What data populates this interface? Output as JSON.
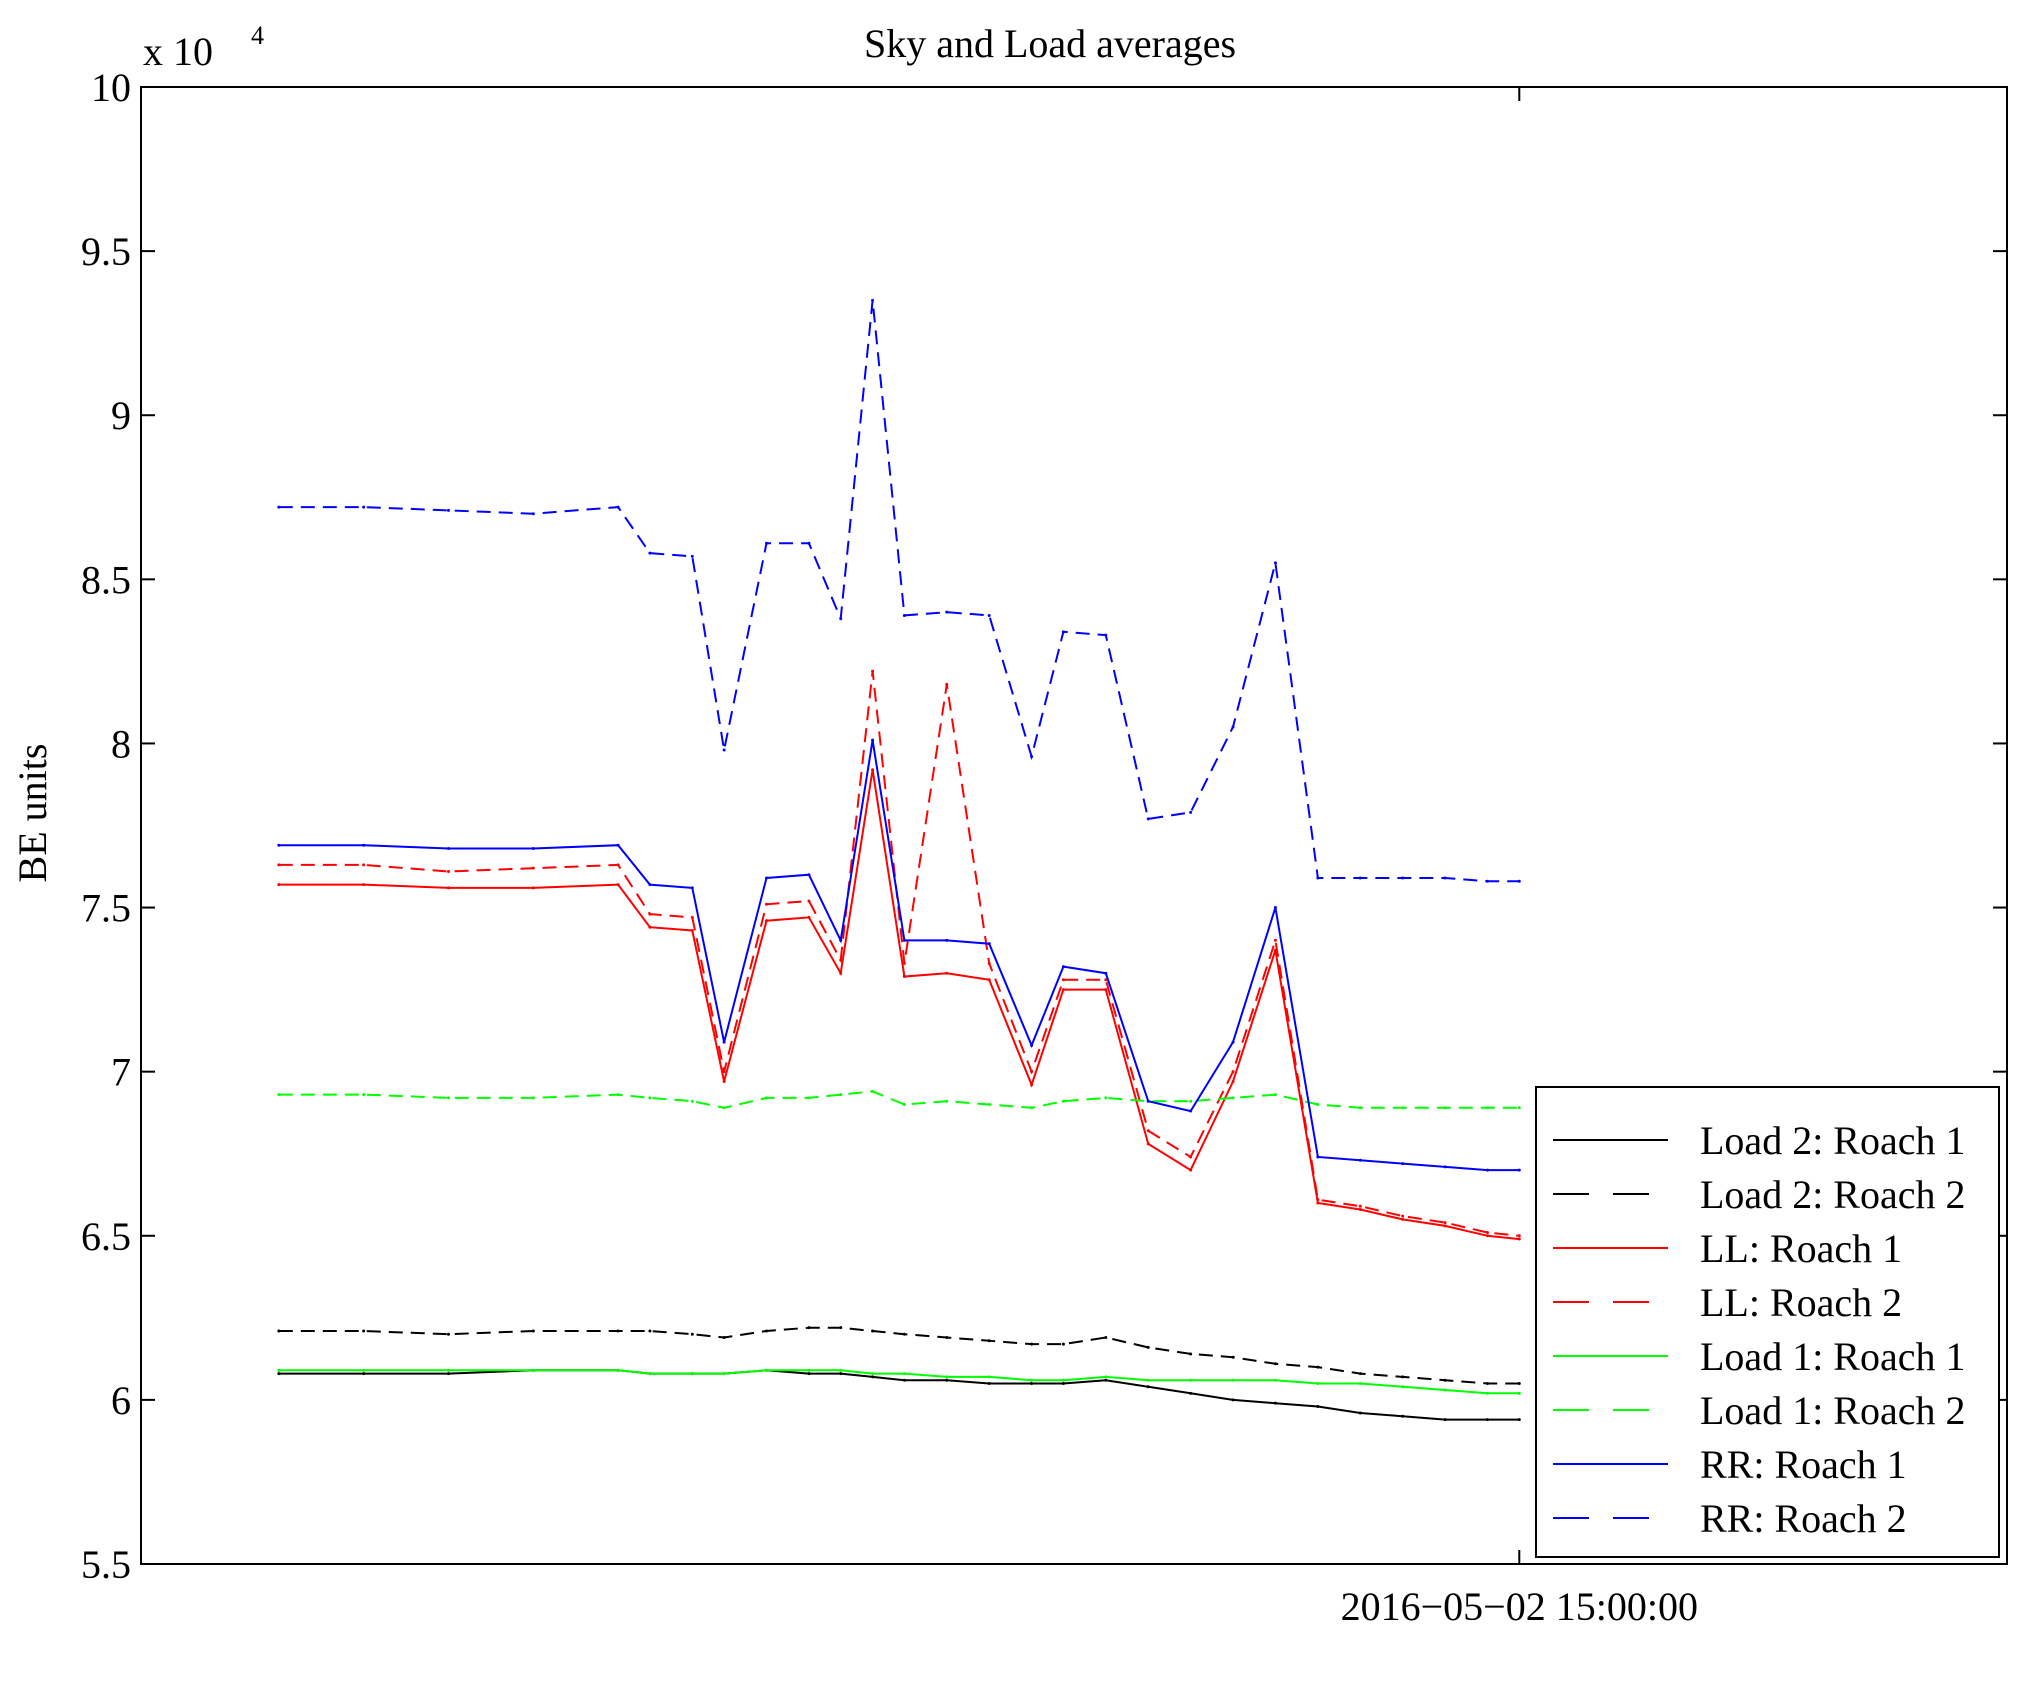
{
  "chart_data": {
    "type": "line",
    "title": "Sky and Load averages",
    "xlabel": "",
    "ylabel": "BE units",
    "y_exponent_label": "x 10",
    "y_exponent_power": "4",
    "ylim": [
      5.5,
      10
    ],
    "y_ticks": [
      5.5,
      6,
      6.5,
      7,
      7.5,
      8,
      8.5,
      9,
      9.5,
      10
    ],
    "y_tick_labels": [
      "5.5",
      "6",
      "6.5",
      "7",
      "7.5",
      "8",
      "8.5",
      "9",
      "9.5",
      "10"
    ],
    "x_unit": "hours",
    "xlim": [
      -13.0,
      4.6
    ],
    "x_ticks": [
      0
    ],
    "x_tick_labels": [
      "2016−05−02 15:00:00"
    ],
    "legend_position": "bottom-right",
    "x": [
      -11.7,
      -10.9,
      -10.1,
      -9.3,
      -8.5,
      -8.2,
      -7.8,
      -7.5,
      -7.1,
      -6.7,
      -6.4,
      -6.1,
      -5.8,
      -5.4,
      -5.0,
      -4.6,
      -4.3,
      -3.9,
      -3.5,
      -3.1,
      -2.7,
      -2.3,
      -1.9,
      -1.5,
      -1.1,
      -0.7,
      -0.3,
      0.0
    ],
    "series": [
      {
        "name": "Load 2: Roach 1",
        "color": "#000000",
        "dash": "solid",
        "values": [
          6.08,
          6.08,
          6.08,
          6.09,
          6.09,
          6.08,
          6.08,
          6.08,
          6.09,
          6.08,
          6.08,
          6.07,
          6.06,
          6.06,
          6.05,
          6.05,
          6.05,
          6.06,
          6.04,
          6.02,
          6.0,
          5.99,
          5.98,
          5.96,
          5.95,
          5.94,
          5.94,
          5.94
        ]
      },
      {
        "name": "Load 2: Roach 2",
        "color": "#000000",
        "dash": "dashed",
        "values": [
          6.21,
          6.21,
          6.2,
          6.21,
          6.21,
          6.21,
          6.2,
          6.19,
          6.21,
          6.22,
          6.22,
          6.21,
          6.2,
          6.19,
          6.18,
          6.17,
          6.17,
          6.19,
          6.16,
          6.14,
          6.13,
          6.11,
          6.1,
          6.08,
          6.07,
          6.06,
          6.05,
          6.05
        ]
      },
      {
        "name": "LL: Roach 1",
        "color": "#ff0000",
        "dash": "solid",
        "values": [
          7.57,
          7.57,
          7.56,
          7.56,
          7.57,
          7.44,
          7.43,
          6.97,
          7.46,
          7.47,
          7.3,
          7.92,
          7.29,
          7.3,
          7.28,
          6.96,
          7.25,
          7.25,
          6.78,
          6.7,
          6.97,
          7.37,
          6.6,
          6.58,
          6.55,
          6.53,
          6.5,
          6.49
        ]
      },
      {
        "name": "LL: Roach 2",
        "color": "#ff0000",
        "dash": "dashed",
        "values": [
          7.63,
          7.63,
          7.61,
          7.62,
          7.63,
          7.48,
          7.47,
          7.0,
          7.51,
          7.52,
          7.34,
          8.22,
          7.33,
          8.18,
          7.33,
          7.0,
          7.28,
          7.28,
          6.82,
          6.74,
          7.0,
          7.4,
          6.61,
          6.59,
          6.56,
          6.54,
          6.51,
          6.5
        ]
      },
      {
        "name": "Load 1: Roach 1",
        "color": "#00ff00",
        "dash": "solid",
        "values": [
          6.09,
          6.09,
          6.09,
          6.09,
          6.09,
          6.08,
          6.08,
          6.08,
          6.09,
          6.09,
          6.09,
          6.08,
          6.08,
          6.07,
          6.07,
          6.06,
          6.06,
          6.07,
          6.06,
          6.06,
          6.06,
          6.06,
          6.05,
          6.05,
          6.04,
          6.03,
          6.02,
          6.02
        ]
      },
      {
        "name": "Load 1: Roach 2",
        "color": "#00ff00",
        "dash": "dashed",
        "values": [
          6.93,
          6.93,
          6.92,
          6.92,
          6.93,
          6.92,
          6.91,
          6.89,
          6.92,
          6.92,
          6.93,
          6.94,
          6.9,
          6.91,
          6.9,
          6.89,
          6.91,
          6.92,
          6.91,
          6.91,
          6.92,
          6.93,
          6.9,
          6.89,
          6.89,
          6.89,
          6.89,
          6.89
        ]
      },
      {
        "name": "RR: Roach 1",
        "color": "#0000ff",
        "dash": "solid",
        "values": [
          7.69,
          7.69,
          7.68,
          7.68,
          7.69,
          7.57,
          7.56,
          7.09,
          7.59,
          7.6,
          7.4,
          8.01,
          7.4,
          7.4,
          7.39,
          7.08,
          7.32,
          7.3,
          6.91,
          6.88,
          7.09,
          7.5,
          6.74,
          6.73,
          6.72,
          6.71,
          6.7,
          6.7
        ]
      },
      {
        "name": "RR: Roach 2",
        "color": "#0000ff",
        "dash": "dashed",
        "values": [
          8.72,
          8.72,
          8.71,
          8.7,
          8.72,
          8.58,
          8.57,
          7.98,
          8.61,
          8.61,
          8.38,
          9.35,
          8.39,
          8.4,
          8.39,
          7.96,
          8.34,
          8.33,
          7.77,
          7.79,
          8.05,
          8.55,
          7.59,
          7.59,
          7.59,
          7.59,
          7.58,
          7.58
        ]
      }
    ]
  }
}
